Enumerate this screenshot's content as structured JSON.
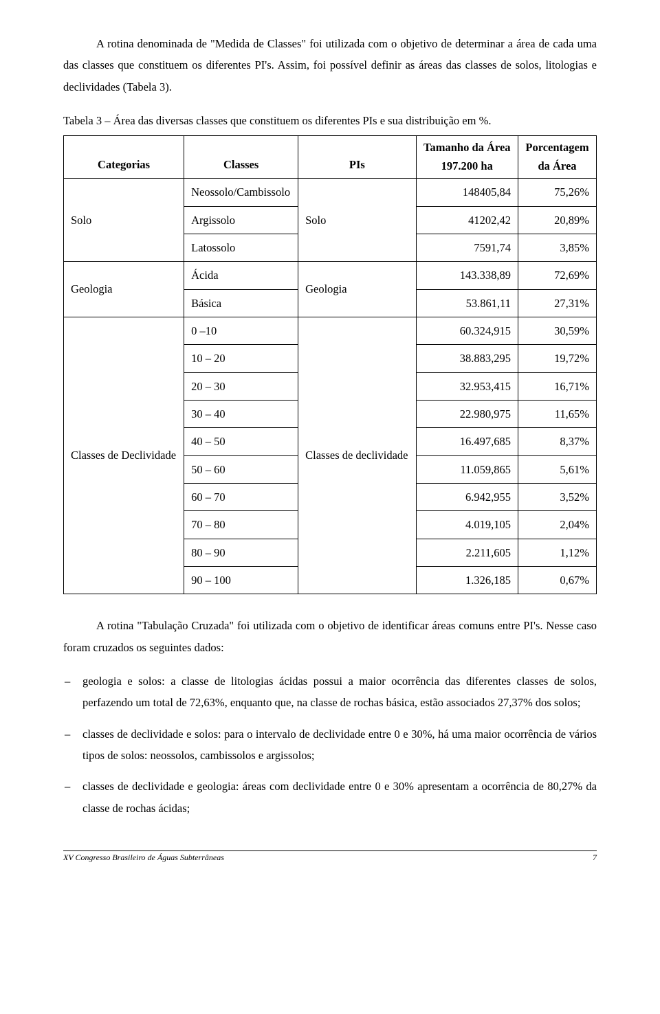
{
  "intro": {
    "p1": "A rotina denominada de \"Medida de Classes\" foi utilizada com o objetivo de determinar a área de cada uma das classes que constituem os diferentes PI's. Assim, foi possível definir as áreas das classes de solos, litologias e declividades (Tabela 3)."
  },
  "table3": {
    "caption": "Tabela 3 – Área das diversas classes que constituem os diferentes PIs e sua distribuição em %.",
    "headers": {
      "categorias": "Categorias",
      "classes": "Classes",
      "pis": "PIs",
      "area_line1": "Tamanho da Área",
      "area_line2": "197.200 ha",
      "pct_line1": "Porcentagem",
      "pct_line2": "da Área"
    },
    "groups": [
      {
        "category": "Solo",
        "pi": "Solo",
        "rows": [
          {
            "class": "Neossolo/Cambissolo",
            "area": "148405,84",
            "pct": "75,26%"
          },
          {
            "class": "Argissolo",
            "area": "41202,42",
            "pct": "20,89%"
          },
          {
            "class": "Latossolo",
            "area": "7591,74",
            "pct": "3,85%"
          }
        ]
      },
      {
        "category": "Geologia",
        "pi": "Geologia",
        "rows": [
          {
            "class": "Ácida",
            "area": "143.338,89",
            "pct": "72,69%"
          },
          {
            "class": "Básica",
            "area": "53.861,11",
            "pct": "27,31%"
          }
        ]
      },
      {
        "category": "Classes de Declividade",
        "pi": "Classes de declividade",
        "rows": [
          {
            "class": "0 –10",
            "area": "60.324,915",
            "pct": "30,59%"
          },
          {
            "class": "10 – 20",
            "area": "38.883,295",
            "pct": "19,72%"
          },
          {
            "class": "20 – 30",
            "area": "32.953,415",
            "pct": "16,71%"
          },
          {
            "class": "30 – 40",
            "area": "22.980,975",
            "pct": "11,65%"
          },
          {
            "class": "40 – 50",
            "area": "16.497,685",
            "pct": "8,37%"
          },
          {
            "class": "50 – 60",
            "area": "11.059,865",
            "pct": "5,61%"
          },
          {
            "class": "60 – 70",
            "area": "6.942,955",
            "pct": "3,52%"
          },
          {
            "class": "70 – 80",
            "area": "4.019,105",
            "pct": "2,04%"
          },
          {
            "class": "80 – 90",
            "area": "2.211,605",
            "pct": "1,12%"
          },
          {
            "class": "90 – 100",
            "area": "1.326,185",
            "pct": "0,67%"
          }
        ]
      }
    ]
  },
  "after": {
    "p2": "A rotina \"Tabulação Cruzada\" foi utilizada com o objetivo de identificar áreas comuns entre PI's. Nesse caso foram cruzados os seguintes dados:"
  },
  "bullets": {
    "b1": "geologia e solos: a classe de litologias ácidas possui  a maior ocorrência das diferentes classes de solos, perfazendo um total de  72,63%, enquanto que, na classe de rochas básica, estão associados 27,37% dos solos;",
    "b2": "classes de declividade e solos: para o intervalo de declividade entre 0 e 30%, há uma maior ocorrência de vários tipos de solos: neossolos, cambissolos e argissolos;",
    "b3": "classes de declividade e geologia: áreas com declividade entre 0 e 30% apresentam a ocorrência de 80,27% da classe de rochas ácidas;"
  },
  "footer": {
    "left": "XV Congresso Brasileiro de Águas Subterrâneas",
    "page": "7"
  },
  "style": {
    "font_family": "Times New Roman",
    "body_font_size_pt": 12,
    "text_color": "#000000",
    "background_color": "#ffffff",
    "table_border_color": "#000000",
    "footer_rule_color": "#000000"
  }
}
